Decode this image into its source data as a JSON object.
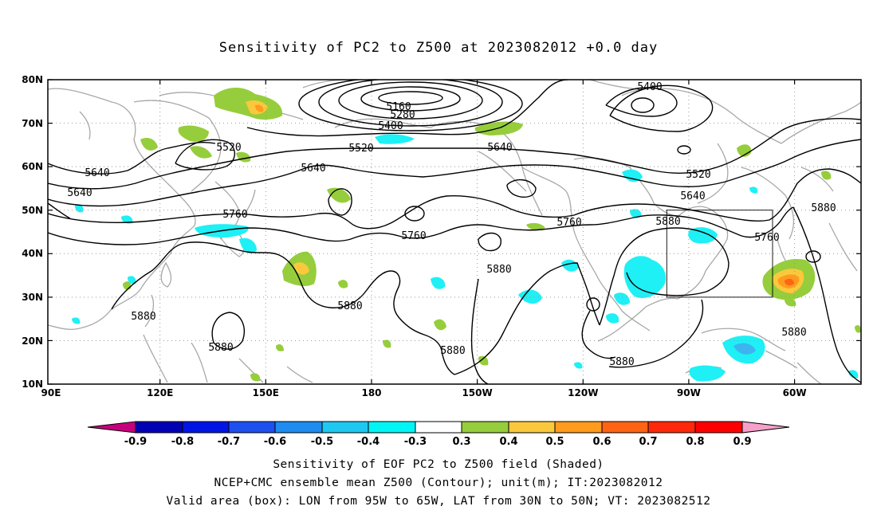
{
  "title": "Sensitivity of PC2 to Z500 at 2023082012 +0.0 day",
  "map": {
    "lat_labels": [
      "80N",
      "70N",
      "60N",
      "50N",
      "40N",
      "30N",
      "20N",
      "10N"
    ],
    "lon_labels": [
      "90E",
      "120E",
      "150E",
      "180",
      "150W",
      "120W",
      "90W",
      "60W"
    ],
    "contour_labels": [
      "5160",
      "5280",
      "5400",
      "5400",
      "5520",
      "5520",
      "5520",
      "5640",
      "5640",
      "5640",
      "5640",
      "5640",
      "5760",
      "5760",
      "5760",
      "5760",
      "5880",
      "5880",
      "5880",
      "5880",
      "5880",
      "5880",
      "5880",
      "5880",
      "5880",
      "5880"
    ],
    "valid_box": {
      "lon_range": "95W to 65W",
      "lat_range": "30N to 50N"
    }
  },
  "colorbar": {
    "labels": [
      "-0.9",
      "-0.8",
      "-0.7",
      "-0.6",
      "-0.5",
      "-0.4",
      "-0.3",
      "0.3",
      "0.4",
      "0.5",
      "0.6",
      "0.7",
      "0.8",
      "0.9"
    ],
    "colors": [
      "#c6007c",
      "#0000b4",
      "#0014e6",
      "#1e50f0",
      "#1e8cf0",
      "#1ec8f0",
      "#00f5f5",
      "#ffffff",
      "#96cd3c",
      "#fac83c",
      "#ff9b1e",
      "#ff6414",
      "#ff280a",
      "#ff0000",
      "#f5a0c8"
    ]
  },
  "colors": {
    "contour": "#000000",
    "coast": "#a8a8a8",
    "grid": "#999999",
    "pos1": "#96cd3c",
    "pos2": "#fac83c",
    "pos3": "#ff9b1e",
    "pos4": "#ff6414",
    "neg": "#1ef0f5",
    "neg2": "#3cb4f0"
  },
  "captions": {
    "line1": "Sensitivity of EOF PC2 to Z500 field (Shaded)",
    "line2": "NCEP+CMC ensemble mean Z500 (Contour); unit(m); IT:2023082012",
    "line3": "Valid area (box): LON from 95W to 65W, LAT from 30N to 50N; VT: 2023082512"
  }
}
